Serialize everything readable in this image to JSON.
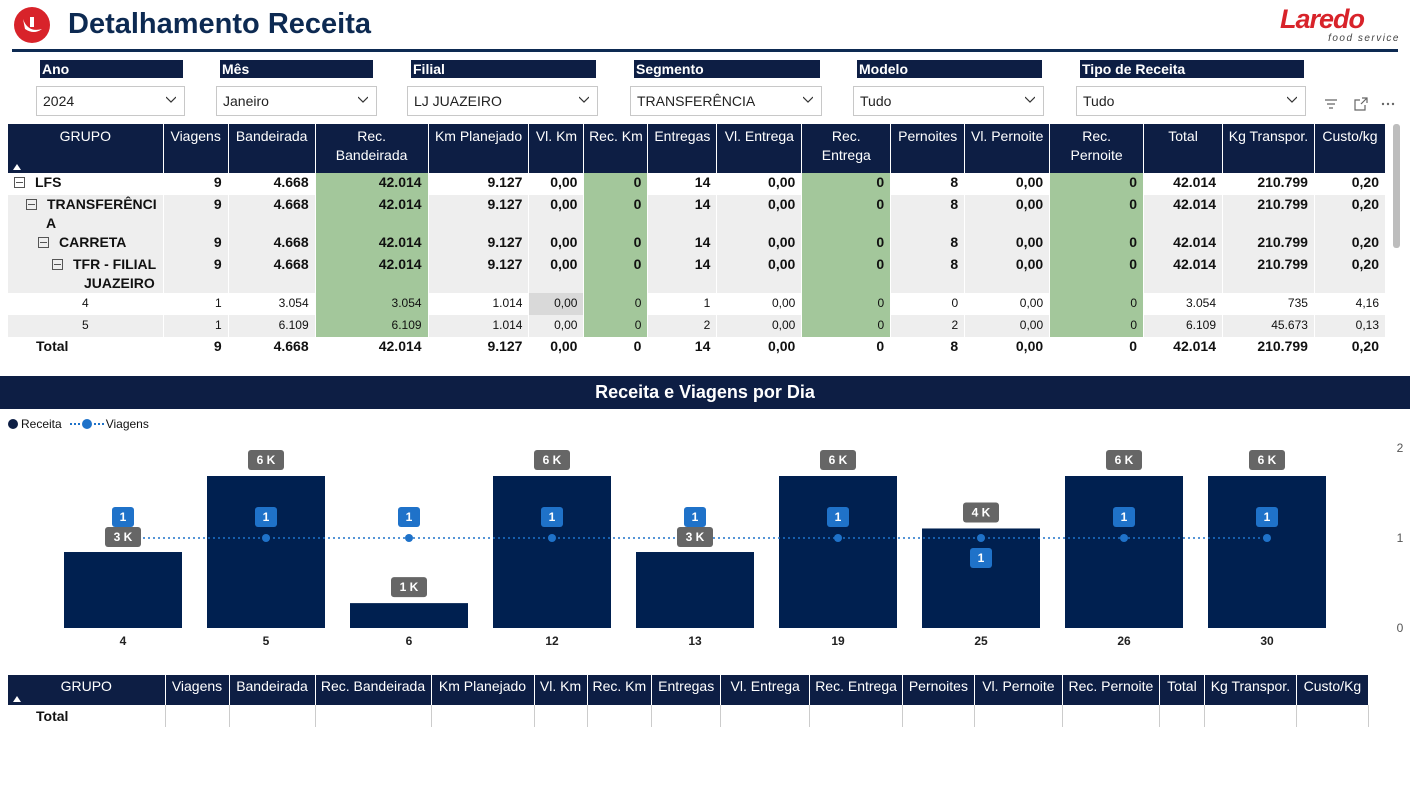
{
  "header": {
    "title": "Detalhamento Receita",
    "brand_name": "Laredo",
    "brand_tagline": "food service"
  },
  "filters": [
    {
      "label": "Ano",
      "value": "2024"
    },
    {
      "label": "Mês",
      "value": "Janeiro"
    },
    {
      "label": "Filial",
      "value": "LJ JUAZEIRO"
    },
    {
      "label": "Segmento",
      "value": "TRANSFERÊNCIA"
    },
    {
      "label": "Modelo",
      "value": "Tudo"
    },
    {
      "label": "Tipo de Receita",
      "value": "Tudo"
    }
  ],
  "main_table": {
    "columns": [
      "GRUPO",
      "Viagens",
      "Bandeirada",
      "Rec. Bandeirada",
      "Km Planejado",
      "Vl. Km",
      "Rec. Km",
      "Entregas",
      "Vl. Entrega",
      "Rec. Entrega",
      "Pernoites",
      "Vl. Pernoite",
      "Rec. Pernoite",
      "Total",
      "Kg Transpor.",
      "Custo/kg"
    ],
    "rows": [
      {
        "level": 0,
        "group": "LFS",
        "cells": [
          "9",
          "4.668",
          "42.014",
          "9.127",
          "0,00",
          "0",
          "14",
          "0,00",
          "0",
          "8",
          "0,00",
          "0",
          "42.014",
          "210.799",
          "0,20"
        ]
      },
      {
        "level": 1,
        "group": "TRANSFERÊNCI",
        "group_line2": "A",
        "cells": [
          "9",
          "4.668",
          "42.014",
          "9.127",
          "0,00",
          "0",
          "14",
          "0,00",
          "0",
          "8",
          "0,00",
          "0",
          "42.014",
          "210.799",
          "0,20"
        ]
      },
      {
        "level": 2,
        "group": "CARRETA",
        "cells": [
          "9",
          "4.668",
          "42.014",
          "9.127",
          "0,00",
          "0",
          "14",
          "0,00",
          "0",
          "8",
          "0,00",
          "0",
          "42.014",
          "210.799",
          "0,20"
        ]
      },
      {
        "level": 3,
        "group": "TFR - FILIAL",
        "group_line2": "JUAZEIRO",
        "cells": [
          "9",
          "4.668",
          "42.014",
          "9.127",
          "0,00",
          "0",
          "14",
          "0,00",
          "0",
          "8",
          "0,00",
          "0",
          "42.014",
          "210.799",
          "0,20"
        ]
      },
      {
        "level": 4,
        "group": "4",
        "cells": [
          "1",
          "3.054",
          "3.054",
          "1.014",
          "0,00",
          "0",
          "1",
          "0,00",
          "0",
          "0",
          "0,00",
          "0",
          "3.054",
          "735",
          "4,16"
        ]
      },
      {
        "level": 4,
        "group": "5",
        "cells": [
          "1",
          "6.109",
          "6.109",
          "1.014",
          "0,00",
          "0",
          "2",
          "0,00",
          "0",
          "2",
          "0,00",
          "0",
          "6.109",
          "45.673",
          "0,13"
        ]
      }
    ],
    "total": {
      "label": "Total",
      "cells": [
        "9",
        "4.668",
        "42.014",
        "9.127",
        "0,00",
        "0",
        "14",
        "0,00",
        "0",
        "8",
        "0,00",
        "0",
        "42.014",
        "210.799",
        "0,20"
      ]
    }
  },
  "chart_title": "Receita e Viagens por Dia",
  "chart_data": {
    "type": "bar",
    "categories": [
      "4",
      "5",
      "6",
      "12",
      "13",
      "19",
      "25",
      "26",
      "30"
    ],
    "series": [
      {
        "name": "Receita",
        "type": "bar",
        "values": [
          3054,
          6109,
          1000,
          6109,
          3054,
          6109,
          4000,
          6109,
          6109
        ],
        "labels": [
          "3 K",
          "6 K",
          "1 K",
          "6 K",
          "3 K",
          "6 K",
          "4 K",
          "6 K",
          "6 K"
        ]
      },
      {
        "name": "Viagens",
        "type": "line",
        "values": [
          1,
          1,
          1,
          1,
          1,
          1,
          1,
          1,
          1
        ],
        "labels": [
          "1",
          "1",
          "1",
          "1",
          "1",
          "1",
          "1",
          "1",
          "1"
        ]
      }
    ],
    "y2_ticks": [
      "2",
      "1",
      "0"
    ],
    "colors": {
      "bar": "#002050",
      "line": "#1f72c9",
      "bar_label_bg": "#666666",
      "line_label_bg": "#1f72c9"
    }
  },
  "bottom_table": {
    "columns": [
      "GRUPO",
      "Viagens",
      "Bandeirada",
      "Rec. Bandeirada",
      "Km Planejado",
      "Vl. Km",
      "Rec. Km",
      "Entregas",
      "Vl. Entrega",
      "Rec. Entrega",
      "Pernoites",
      "Vl. Pernoite",
      "Rec. Pernoite",
      "Total",
      "Kg Transpor.",
      "Custo/Kg"
    ],
    "total_label": "Total"
  }
}
